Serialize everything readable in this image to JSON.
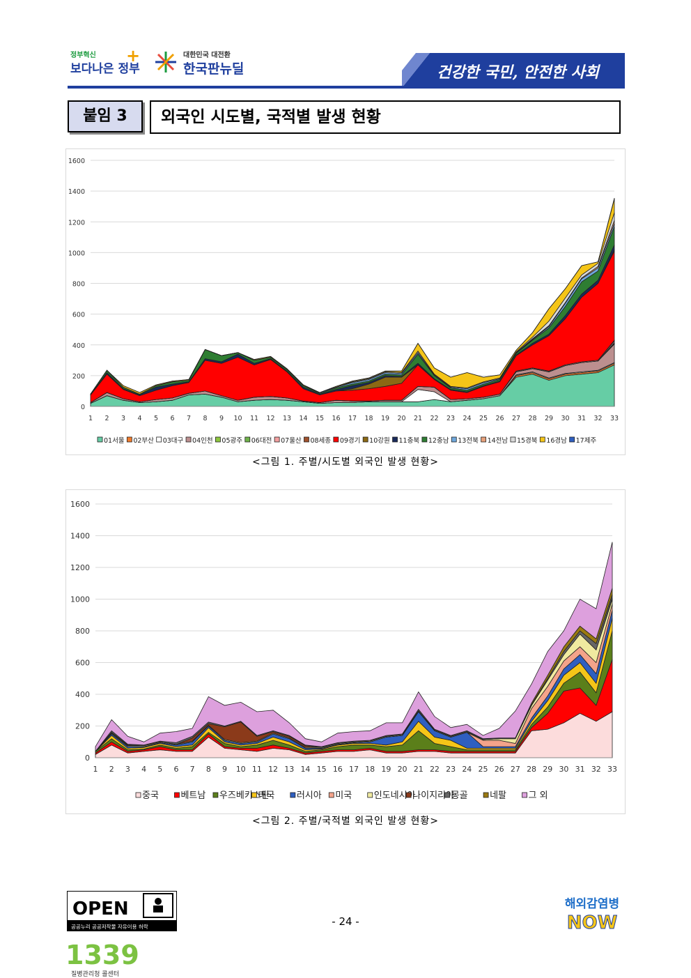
{
  "header": {
    "logo1_small": "정부혁신",
    "logo1_big": "보다나은 정부",
    "logo2_small": "대한민국 대전환",
    "logo2_big": "한국판뉴딜",
    "slogan": "건강한 국민, 안전한 사회"
  },
  "section": {
    "tag": "붙임 3",
    "title": "외국인 시도별, 국적별 발생 현황"
  },
  "captions": {
    "fig1": "<그림 1. 주별/시도별 외국인 발생 현황>",
    "fig2": "<그림 2. 주별/국적별 외국인 발생 현황>"
  },
  "footer": {
    "open_text": "OPEN",
    "open_sub": "공공누리 공공저작물 자유이용 허락",
    "page": "- 24 -",
    "logo1339": "1339",
    "logo1339_sub": "질병관리청 콜센터",
    "now_top": "해외감염병",
    "now_bottom": "NOW"
  },
  "colors": {
    "brand_blue": "#1f3f9e",
    "brand_green": "#1c9b3f"
  },
  "chart_data": [
    {
      "type": "area",
      "stacked": true,
      "title": "",
      "ylim": [
        0,
        1600
      ],
      "yticks": [
        0,
        200,
        400,
        600,
        800,
        1000,
        1200,
        1400,
        1600
      ],
      "x": [
        1,
        2,
        3,
        4,
        5,
        6,
        7,
        8,
        9,
        10,
        11,
        12,
        13,
        14,
        15,
        16,
        17,
        18,
        19,
        20,
        21,
        22,
        23,
        24,
        25,
        26,
        27,
        28,
        29,
        30,
        31,
        32,
        33
      ],
      "legend_position": "bottom",
      "series": [
        {
          "name": "01서울",
          "color": "#66cda5",
          "values": [
            20,
            70,
            40,
            25,
            30,
            40,
            75,
            80,
            60,
            30,
            40,
            45,
            40,
            30,
            20,
            25,
            25,
            30,
            30,
            30,
            30,
            45,
            30,
            40,
            50,
            70,
            190,
            210,
            170,
            200,
            210,
            220,
            270
          ]
        },
        {
          "name": "02부산",
          "color": "#f07b2c",
          "values": [
            0,
            0,
            0,
            0,
            0,
            0,
            0,
            0,
            0,
            0,
            0,
            0,
            0,
            0,
            0,
            0,
            0,
            0,
            0,
            0,
            0,
            0,
            0,
            0,
            0,
            0,
            10,
            10,
            10,
            10,
            10,
            10,
            10
          ]
        },
        {
          "name": "03대구",
          "color": "#ffffff",
          "values": [
            0,
            0,
            0,
            0,
            0,
            0,
            0,
            0,
            0,
            0,
            0,
            0,
            0,
            0,
            0,
            0,
            0,
            0,
            0,
            0,
            80,
            50,
            0,
            0,
            0,
            0,
            5,
            5,
            5,
            5,
            5,
            5,
            5
          ]
        },
        {
          "name": "04인천",
          "color": "#bc8f8f",
          "values": [
            5,
            20,
            10,
            5,
            15,
            15,
            10,
            20,
            10,
            10,
            20,
            20,
            15,
            5,
            5,
            15,
            10,
            5,
            10,
            10,
            20,
            30,
            15,
            10,
            10,
            10,
            20,
            20,
            40,
            50,
            60,
            60,
            120
          ]
        },
        {
          "name": "05광주",
          "color": "#8dc63f",
          "values": [
            0,
            0,
            0,
            0,
            0,
            0,
            0,
            0,
            0,
            0,
            0,
            0,
            0,
            0,
            0,
            0,
            0,
            0,
            0,
            0,
            0,
            0,
            0,
            0,
            0,
            0,
            0,
            0,
            0,
            0,
            0,
            0,
            5
          ]
        },
        {
          "name": "06대전",
          "color": "#6fb24a",
          "values": [
            0,
            0,
            0,
            0,
            0,
            0,
            0,
            0,
            0,
            0,
            0,
            0,
            0,
            0,
            0,
            0,
            0,
            0,
            0,
            0,
            0,
            0,
            0,
            0,
            0,
            0,
            0,
            0,
            0,
            0,
            0,
            0,
            5
          ]
        },
        {
          "name": "07울산",
          "color": "#f4a0a0",
          "values": [
            0,
            0,
            0,
            0,
            0,
            0,
            0,
            0,
            0,
            0,
            0,
            0,
            0,
            0,
            0,
            0,
            0,
            0,
            0,
            0,
            0,
            0,
            0,
            0,
            0,
            0,
            5,
            5,
            5,
            5,
            5,
            5,
            10
          ]
        },
        {
          "name": "08세종",
          "color": "#a0522d",
          "values": [
            0,
            0,
            0,
            0,
            0,
            0,
            0,
            0,
            0,
            0,
            0,
            0,
            0,
            0,
            0,
            0,
            0,
            0,
            0,
            0,
            0,
            0,
            0,
            0,
            0,
            0,
            0,
            0,
            0,
            0,
            0,
            0,
            5
          ]
        },
        {
          "name": "09경기",
          "color": "#ff0000",
          "values": [
            50,
            120,
            60,
            40,
            60,
            80,
            70,
            200,
            210,
            280,
            210,
            240,
            170,
            80,
            50,
            60,
            70,
            80,
            90,
            110,
            140,
            50,
            60,
            40,
            70,
            80,
            100,
            150,
            230,
            300,
            420,
            500,
            580
          ]
        },
        {
          "name": "10강원",
          "color": "#8b6914",
          "values": [
            0,
            0,
            0,
            0,
            0,
            0,
            0,
            0,
            0,
            0,
            0,
            0,
            0,
            0,
            0,
            0,
            10,
            30,
            60,
            40,
            0,
            0,
            0,
            0,
            0,
            0,
            0,
            0,
            0,
            0,
            0,
            0,
            10
          ]
        },
        {
          "name": "11충북",
          "color": "#1a2a5a",
          "values": [
            0,
            10,
            5,
            5,
            20,
            10,
            5,
            10,
            10,
            20,
            10,
            5,
            5,
            10,
            5,
            10,
            20,
            10,
            10,
            5,
            10,
            5,
            5,
            5,
            5,
            5,
            5,
            10,
            10,
            20,
            20,
            20,
            30
          ]
        },
        {
          "name": "12충남",
          "color": "#2e7d32",
          "values": [
            5,
            15,
            10,
            5,
            10,
            15,
            10,
            60,
            40,
            10,
            20,
            10,
            10,
            10,
            5,
            10,
            10,
            10,
            10,
            10,
            60,
            20,
            10,
            10,
            10,
            10,
            10,
            20,
            40,
            60,
            80,
            60,
            120
          ]
        },
        {
          "name": "13전북",
          "color": "#6fa8dc",
          "values": [
            0,
            0,
            0,
            0,
            0,
            0,
            0,
            0,
            0,
            0,
            0,
            0,
            0,
            0,
            5,
            5,
            10,
            10,
            10,
            10,
            10,
            5,
            5,
            10,
            10,
            5,
            5,
            5,
            10,
            20,
            20,
            20,
            20
          ]
        },
        {
          "name": "14전남",
          "color": "#e6a07a",
          "values": [
            0,
            0,
            0,
            0,
            0,
            0,
            0,
            0,
            0,
            0,
            0,
            0,
            0,
            0,
            0,
            0,
            0,
            0,
            0,
            0,
            0,
            0,
            0,
            0,
            0,
            0,
            0,
            5,
            5,
            5,
            5,
            10,
            20
          ]
        },
        {
          "name": "15경북",
          "color": "#d9d9d9",
          "values": [
            0,
            0,
            0,
            0,
            0,
            0,
            0,
            0,
            0,
            0,
            0,
            0,
            0,
            0,
            0,
            0,
            5,
            5,
            5,
            5,
            10,
            5,
            5,
            5,
            5,
            5,
            5,
            10,
            30,
            30,
            20,
            20,
            50
          ]
        },
        {
          "name": "16경남",
          "color": "#f5c518",
          "values": [
            0,
            0,
            10,
            10,
            5,
            5,
            5,
            0,
            0,
            0,
            5,
            5,
            5,
            5,
            0,
            5,
            5,
            5,
            5,
            10,
            50,
            40,
            60,
            100,
            30,
            20,
            10,
            30,
            80,
            60,
            60,
            10,
            90
          ]
        },
        {
          "name": "17제주",
          "color": "#2f5fc0",
          "values": [
            0,
            0,
            0,
            0,
            0,
            0,
            0,
            0,
            0,
            0,
            0,
            0,
            0,
            0,
            0,
            0,
            0,
            0,
            0,
            0,
            0,
            0,
            0,
            0,
            0,
            0,
            0,
            0,
            0,
            0,
            0,
            0,
            5
          ]
        }
      ]
    },
    {
      "type": "area",
      "stacked": true,
      "title": "",
      "ylim": [
        0,
        1600
      ],
      "yticks": [
        0,
        200,
        400,
        600,
        800,
        1000,
        1200,
        1400,
        1600
      ],
      "x": [
        1,
        2,
        3,
        4,
        5,
        6,
        7,
        8,
        9,
        10,
        11,
        12,
        13,
        14,
        15,
        16,
        17,
        18,
        19,
        20,
        21,
        22,
        23,
        24,
        25,
        26,
        27,
        28,
        29,
        30,
        31,
        32,
        33
      ],
      "legend_position": "bottom",
      "series": [
        {
          "name": "중국",
          "color": "#fcdcdc",
          "values": [
            20,
            80,
            30,
            40,
            50,
            40,
            40,
            130,
            60,
            50,
            40,
            60,
            50,
            20,
            30,
            40,
            40,
            50,
            30,
            30,
            40,
            40,
            30,
            30,
            30,
            30,
            30,
            170,
            180,
            220,
            280,
            230,
            290
          ]
        },
        {
          "name": "베트남",
          "color": "#ff0000",
          "values": [
            10,
            20,
            10,
            10,
            20,
            10,
            10,
            20,
            10,
            10,
            20,
            20,
            10,
            10,
            10,
            10,
            10,
            10,
            10,
            10,
            10,
            10,
            10,
            10,
            10,
            10,
            10,
            20,
            100,
            200,
            160,
            100,
            330
          ]
        },
        {
          "name": "우즈베키스탄",
          "color": "#5b7f1a",
          "values": [
            10,
            20,
            10,
            5,
            10,
            10,
            20,
            10,
            20,
            10,
            20,
            30,
            20,
            10,
            10,
            20,
            30,
            20,
            30,
            40,
            120,
            40,
            30,
            10,
            10,
            10,
            10,
            20,
            40,
            50,
            100,
            80,
            180
          ]
        },
        {
          "name": "태국",
          "color": "#f5c518",
          "values": [
            0,
            20,
            10,
            10,
            10,
            10,
            10,
            30,
            10,
            10,
            10,
            20,
            20,
            10,
            5,
            10,
            10,
            10,
            10,
            20,
            60,
            40,
            40,
            10,
            10,
            10,
            10,
            20,
            40,
            50,
            60,
            60,
            80
          ]
        },
        {
          "name": "러시아",
          "color": "#2f5fc0",
          "values": [
            0,
            10,
            10,
            5,
            5,
            10,
            20,
            10,
            10,
            10,
            10,
            20,
            20,
            10,
            5,
            5,
            5,
            10,
            50,
            40,
            60,
            40,
            20,
            100,
            10,
            10,
            10,
            20,
            30,
            40,
            50,
            60,
            50
          ]
        },
        {
          "name": "미국",
          "color": "#f4a38a",
          "values": [
            0,
            0,
            0,
            0,
            0,
            0,
            0,
            0,
            0,
            0,
            0,
            0,
            0,
            0,
            0,
            0,
            0,
            0,
            0,
            0,
            0,
            0,
            0,
            0,
            40,
            40,
            20,
            60,
            60,
            50,
            50,
            70,
            40
          ]
        },
        {
          "name": "인도네시아",
          "color": "#f0eaa0",
          "values": [
            0,
            5,
            5,
            5,
            5,
            5,
            5,
            5,
            5,
            5,
            5,
            5,
            5,
            5,
            5,
            5,
            5,
            5,
            5,
            5,
            5,
            5,
            5,
            5,
            5,
            10,
            30,
            20,
            40,
            40,
            80,
            80,
            30
          ]
        },
        {
          "name": "나이지리아",
          "color": "#8b3a1a",
          "values": [
            0,
            5,
            5,
            0,
            0,
            0,
            20,
            10,
            80,
            130,
            30,
            10,
            10,
            10,
            0,
            0,
            0,
            0,
            0,
            0,
            0,
            0,
            0,
            0,
            0,
            0,
            0,
            0,
            0,
            0,
            0,
            0,
            10
          ]
        },
        {
          "name": "몽골",
          "color": "#666666",
          "values": [
            0,
            10,
            5,
            5,
            5,
            10,
            10,
            10,
            5,
            5,
            5,
            5,
            5,
            5,
            5,
            5,
            5,
            5,
            5,
            5,
            10,
            5,
            5,
            5,
            5,
            5,
            5,
            5,
            10,
            20,
            20,
            40,
            20
          ]
        },
        {
          "name": "네팔",
          "color": "#9a7a10",
          "values": [
            0,
            0,
            0,
            0,
            0,
            0,
            0,
            0,
            0,
            0,
            0,
            0,
            0,
            0,
            0,
            0,
            0,
            0,
            0,
            0,
            0,
            0,
            0,
            0,
            0,
            0,
            0,
            10,
            20,
            30,
            30,
            30,
            40
          ]
        },
        {
          "name": "그 외",
          "color": "#dda0dd",
          "values": [
            30,
            70,
            50,
            20,
            50,
            70,
            50,
            160,
            130,
            120,
            150,
            130,
            80,
            40,
            30,
            60,
            60,
            60,
            80,
            70,
            110,
            80,
            50,
            40,
            20,
            60,
            170,
            120,
            150,
            100,
            170,
            190,
            290
          ]
        }
      ]
    }
  ]
}
